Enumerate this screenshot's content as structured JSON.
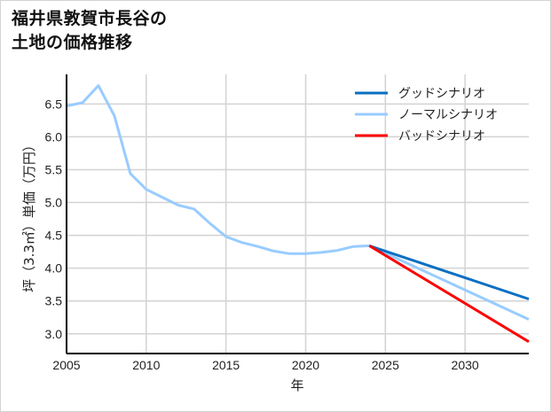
{
  "title_lines": [
    "福井県敦賀市長谷の",
    "土地の価格推移"
  ],
  "colors": {
    "good": "#0a6fc2",
    "normal": "#99ccff",
    "bad": "#ff0000",
    "grid": "#d3d3d3",
    "axis": "#000000"
  },
  "chart_data": {
    "type": "line",
    "title": "福井県敦賀市長谷の土地の価格推移",
    "xlabel": "年",
    "ylabel": "坪（3.3㎡）単価（万円）",
    "xlim": [
      2005,
      2034
    ],
    "ylim": [
      2.7,
      6.95
    ],
    "x_ticks": [
      2005,
      2010,
      2015,
      2020,
      2025,
      2030
    ],
    "y_ticks": [
      3.0,
      3.5,
      4.0,
      4.5,
      5.0,
      5.5,
      6.0,
      6.5
    ],
    "grid": true,
    "legend_position": "upper right",
    "series": [
      {
        "name": "グッドシナリオ",
        "color": "#0a6fc2",
        "x": [
          2024,
          2034
        ],
        "values": [
          4.34,
          3.53
        ]
      },
      {
        "name": "ノーマルシナリオ",
        "color": "#99ccff",
        "x": [
          2005,
          2006,
          2007,
          2008,
          2009,
          2010,
          2011,
          2012,
          2013,
          2014,
          2015,
          2016,
          2017,
          2018,
          2019,
          2020,
          2021,
          2022,
          2023,
          2024,
          2034
        ],
        "values": [
          6.47,
          6.52,
          6.78,
          6.32,
          5.44,
          5.2,
          5.08,
          4.96,
          4.9,
          4.68,
          4.48,
          4.39,
          4.33,
          4.26,
          4.22,
          4.22,
          4.24,
          4.27,
          4.33,
          4.34,
          3.22
        ]
      },
      {
        "name": "バッドシナリオ",
        "color": "#ff0000",
        "x": [
          2024,
          2034
        ],
        "values": [
          4.34,
          2.88
        ]
      }
    ]
  }
}
